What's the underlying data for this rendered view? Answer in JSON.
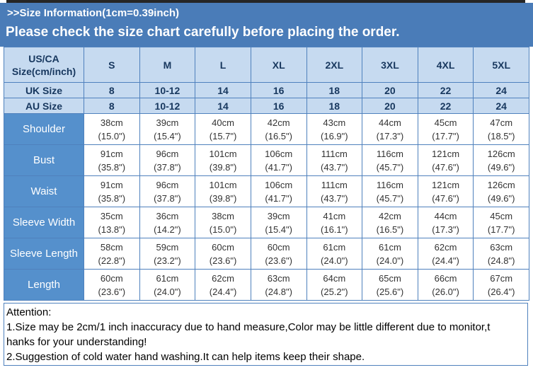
{
  "banner": {
    "info_line": ">>Size Information(1cm=0.39inch)",
    "warning_line": "Please check the size chart carefully before placing the order."
  },
  "size_table": {
    "rows": [
      {
        "type": "head",
        "label": "US/CA Size(cm/inch)",
        "cells": [
          "S",
          "M",
          "L",
          "XL",
          "2XL",
          "3XL",
          "4XL",
          "5XL"
        ]
      },
      {
        "type": "head",
        "label": "UK Size",
        "cells": [
          "8",
          "10-12",
          "14",
          "16",
          "18",
          "20",
          "22",
          "24"
        ]
      },
      {
        "type": "head",
        "label": "AU Size",
        "cells": [
          "8",
          "10-12",
          "14",
          "16",
          "18",
          "20",
          "22",
          "24"
        ]
      },
      {
        "type": "measure",
        "label": "Shoulder",
        "cm": [
          "38cm",
          "39cm",
          "40cm",
          "42cm",
          "43cm",
          "44cm",
          "45cm",
          "47cm"
        ],
        "inch": [
          "(15.0\")",
          "(15.4\")",
          "(15.7\")",
          "(16.5\")",
          "(16.9\")",
          "(17.3\")",
          "(17.7\")",
          "(18.5\")"
        ]
      },
      {
        "type": "measure",
        "label": "Bust",
        "cm": [
          "91cm",
          "96cm",
          "101cm",
          "106cm",
          "111cm",
          "116cm",
          "121cm",
          "126cm"
        ],
        "inch": [
          "(35.8\")",
          "(37.8\")",
          "(39.8\")",
          "(41.7\")",
          "(43.7\")",
          "(45.7\")",
          "(47.6\")",
          "(49.6\")"
        ]
      },
      {
        "type": "measure",
        "label": "Waist",
        "cm": [
          "91cm",
          "96cm",
          "101cm",
          "106cm",
          "111cm",
          "116cm",
          "121cm",
          "126cm"
        ],
        "inch": [
          "(35.8\")",
          "(37.8\")",
          "(39.8\")",
          "(41.7\")",
          "(43.7\")",
          "(45.7\")",
          "(47.6\")",
          "(49.6\")"
        ]
      },
      {
        "type": "measure",
        "label": "Sleeve Width",
        "cm": [
          "35cm",
          "36cm",
          "38cm",
          "39cm",
          "41cm",
          "42cm",
          "44cm",
          "45cm"
        ],
        "inch": [
          "(13.8\")",
          "(14.2\")",
          "(15.0\")",
          "(15.4\")",
          "(16.1\")",
          "(16.5\")",
          "(17.3\")",
          "(17.7\")"
        ]
      },
      {
        "type": "measure",
        "label": "Sleeve Length",
        "cm": [
          "58cm",
          "59cm",
          "60cm",
          "60cm",
          "61cm",
          "61cm",
          "62cm",
          "63cm"
        ],
        "inch": [
          "(22.8\")",
          "(23.2\")",
          "(23.6\")",
          "(23.6\")",
          "(24.0\")",
          "(24.0\")",
          "(24.4\")",
          "(24.8\")"
        ]
      },
      {
        "type": "measure",
        "label": "Length",
        "cm": [
          "60cm",
          "61cm",
          "62cm",
          "63cm",
          "64cm",
          "65cm",
          "66cm",
          "67cm"
        ],
        "inch": [
          "(23.6\")",
          "(24.0\")",
          "(24.4\")",
          "(24.8\")",
          "(25.2\")",
          "(25.6\")",
          "(26.0\")",
          "(26.4\")"
        ]
      }
    ]
  },
  "attention": {
    "lines": [
      "Attention:",
      "1.Size may be 2cm/1 inch inaccuracy due to hand measure,Color may be little different due to monitor,t",
      "hanks for your understanding!",
      "2.Suggestion of cold water hand washing.It can help items keep their shape."
    ]
  },
  "colors": {
    "banner_blue": "#4A7CB8",
    "border_blue": "#4F81BD",
    "header_cell_blue": "#C6DAF0",
    "label_cell_blue": "#5590CC",
    "header_text_navy": "#17375E",
    "top_bar_black": "#262626"
  }
}
